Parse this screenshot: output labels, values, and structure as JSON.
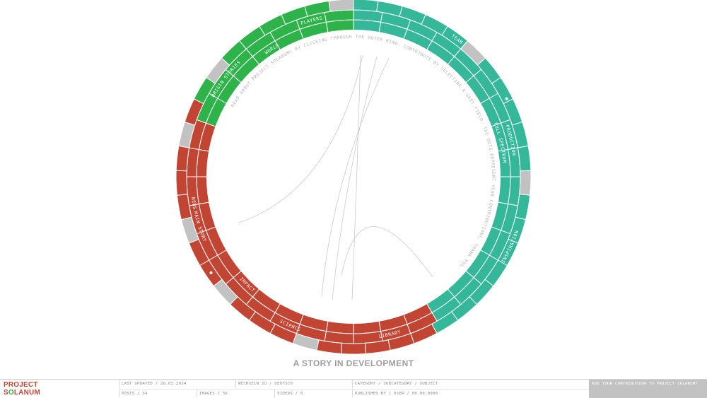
{
  "tagline": "A STORY IN DEVELOPMENT",
  "colors": {
    "green": "#2db34a",
    "teal": "#35b89a",
    "red": "#c24533",
    "gray": "#c2c2c2"
  },
  "wheel": {
    "instruction_text": "READ ABOUT PROJECT SOLANUM! BY CLICKING THROUGH THE OUTER RING. CONTRIBUTE BY SELECTING A GREY FIELD. THE DOTS REPRESENT YOUR CONTRIBUTIONS. THANK YOU.",
    "categories": [
      {
        "label": "FULL SPECTRUM",
        "color": "teal",
        "start": 0,
        "end": 154
      },
      {
        "label": "IMPACT",
        "color": "red",
        "start": 154,
        "end": 295
      },
      {
        "label": "WORLD",
        "color": "green",
        "start": 295,
        "end": 360
      }
    ],
    "subcategories": [
      {
        "label": "PRODUCTION",
        "color": "teal",
        "start": 0,
        "end": 154
      },
      {
        "label": "LIBRARY",
        "color": "red",
        "start": 154,
        "end": 180
      },
      {
        "label": "SCIENCE",
        "color": "red",
        "start": 180,
        "end": 226
      },
      {
        "label": "NEWS",
        "color": "red",
        "start": 226,
        "end": 295
      },
      {
        "label": "MAIN STORY",
        "color": "green",
        "start": 239,
        "end": 265
      },
      {
        "label": "ORIGIN STORIES",
        "color": "green",
        "start": 265,
        "end": 350
      },
      {
        "label": "PLAYERS",
        "color": "green",
        "start": 330,
        "end": 360
      }
    ],
    "subjects": [
      {
        "label": "TEAM",
        "color": "teal",
        "start": 0,
        "end": 74
      },
      {
        "label": "INSPIRATION",
        "color": "teal",
        "start": 74,
        "end": 154
      }
    ],
    "dots": [
      {
        "angle": 63,
        "ring": "subjects"
      },
      {
        "angle": 236,
        "ring": "subjects"
      }
    ]
  },
  "footer": {
    "logo_top": "PROJECT",
    "logo_bottom": "SOLANUM",
    "last_updated": "LAST UPDATED / 28.02.2024",
    "language": "WECHSELN ZU / DEUTSCH",
    "path": "CATEGORY / SUBCATEGORY / SUBJECT",
    "posts": "POSTS / 34",
    "images": "IMAGES / 56",
    "videos": "VIDEOS / 6",
    "published": "PUBLISHED BY / USER / 00.00.0000",
    "contribute": "ADD YOUR CONTRIBUTION TO PROJECT SOLANUM!"
  }
}
